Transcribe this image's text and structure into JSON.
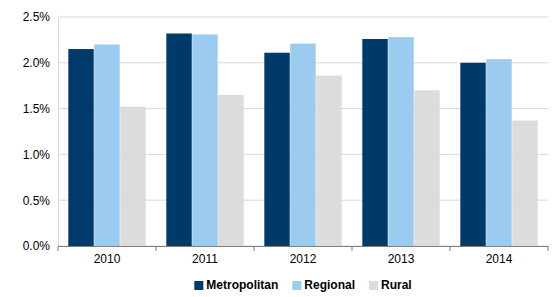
{
  "chart_data": {
    "type": "bar",
    "categories": [
      "2010",
      "2011",
      "2012",
      "2013",
      "2014"
    ],
    "series": [
      {
        "name": "Metropolitan",
        "color": "#003a6b",
        "values": [
          2.15,
          2.32,
          2.11,
          2.26,
          2.0
        ]
      },
      {
        "name": "Regional",
        "color": "#9bcbee",
        "values": [
          2.2,
          2.31,
          2.21,
          2.28,
          2.04
        ]
      },
      {
        "name": "Rural",
        "color": "#dcdcdc",
        "values": [
          1.52,
          1.65,
          1.86,
          1.7,
          1.37
        ]
      }
    ],
    "ylim": [
      0,
      2.5
    ],
    "yticks": [
      {
        "value": 0,
        "label": "0.0%"
      },
      {
        "value": 0.5,
        "label": "0.5%"
      },
      {
        "value": 1,
        "label": "1.0%"
      },
      {
        "value": 1.5,
        "label": "1.5%"
      },
      {
        "value": 2,
        "label": "2.0%"
      },
      {
        "value": 2.5,
        "label": "2.5%"
      }
    ],
    "grid": true,
    "legend": "bottom"
  }
}
